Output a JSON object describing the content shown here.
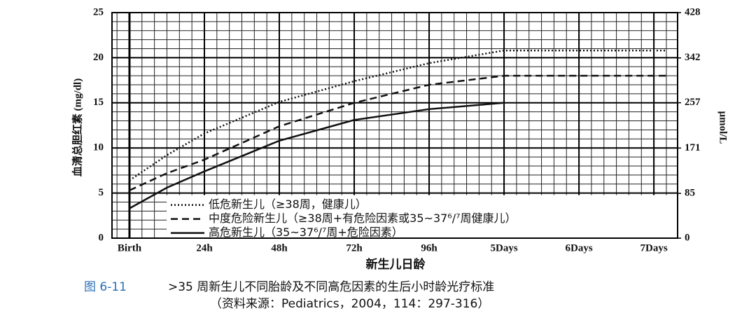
{
  "chart_data": {
    "type": "line",
    "y_label": "血清总胆红素 (mg/dl)",
    "y2_label": "μmol/L",
    "x_label": "新生儿日龄",
    "caption_label": "图 6-11",
    "caption": ">35 周新生儿不同胎龄及不同高危因素的生后小时龄光疗标准",
    "caption_source": "（资料来源：Pediatrics，2004，114：297-316）",
    "xlim": [
      -5.6,
      175.6
    ],
    "xticks": [
      {
        "value": 0,
        "label": "Birth"
      },
      {
        "value": 24,
        "label": "24h"
      },
      {
        "value": 48,
        "label": "48h"
      },
      {
        "value": 72,
        "label": "72h"
      },
      {
        "value": 96,
        "label": "96h"
      },
      {
        "value": 120,
        "label": "5Days"
      },
      {
        "value": 144,
        "label": "6Days"
      },
      {
        "value": 168,
        "label": "7Days"
      }
    ],
    "ylim": [
      0,
      25
    ],
    "yticks": [
      0,
      5,
      10,
      15,
      20,
      25
    ],
    "y2lim": [
      0,
      428
    ],
    "y2ticks": [
      0,
      85,
      171,
      257,
      342,
      428
    ],
    "grid": true,
    "minor_grid": {
      "x": 4,
      "y": 1
    },
    "series": [
      {
        "name": "低危新生儿（≥38周，健康儿）",
        "color": "#111111",
        "dash": "dotted",
        "x": [
          0,
          12,
          24,
          48,
          72,
          96,
          120,
          172
        ],
        "values": [
          6.4,
          9.2,
          11.6,
          15.1,
          17.4,
          19.4,
          20.8,
          20.8
        ]
      },
      {
        "name": "中度危险新生儿（≥38周+有危险因素或35~37⁶/⁷周健康儿）",
        "color": "#111111",
        "dash": "dashed",
        "x": [
          0,
          12,
          24,
          48,
          72,
          96,
          120,
          172
        ],
        "values": [
          5.3,
          7.2,
          8.7,
          12.4,
          15.0,
          17.0,
          18.0,
          18.0
        ]
      },
      {
        "name": "高危新生儿（35~37⁶/⁷周+危险因素）",
        "color": "#111111",
        "dash": "solid",
        "x": [
          0,
          12,
          24,
          48,
          72,
          96,
          120
        ],
        "values": [
          3.3,
          5.6,
          7.4,
          10.8,
          13.1,
          14.3,
          15.0
        ]
      }
    ]
  }
}
